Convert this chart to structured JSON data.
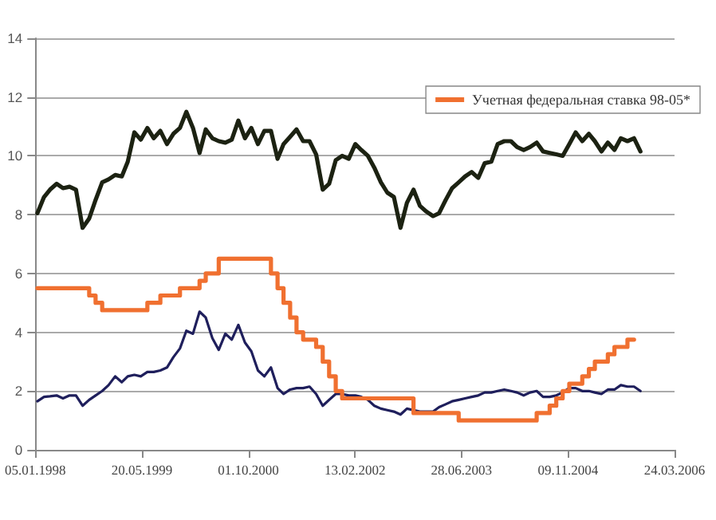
{
  "chart_data": {
    "type": "line",
    "x": [
      "1998-01-15",
      "1998-02-15",
      "1998-03-15",
      "1998-04-15",
      "1998-05-15",
      "1998-06-15",
      "1998-07-15",
      "1998-08-15",
      "1998-09-15",
      "1998-10-15",
      "1998-11-15",
      "1998-12-15",
      "1999-01-15",
      "1999-02-15",
      "1999-03-15",
      "1999-04-15",
      "1999-05-15",
      "1999-06-15",
      "1999-07-15",
      "1999-08-15",
      "1999-09-15",
      "1999-10-15",
      "1999-11-15",
      "1999-12-15",
      "2000-01-15",
      "2000-02-15",
      "2000-03-15",
      "2000-04-15",
      "2000-05-15",
      "2000-06-15",
      "2000-07-15",
      "2000-08-15",
      "2000-09-15",
      "2000-10-15",
      "2000-11-15",
      "2000-12-15",
      "2001-01-15",
      "2001-02-15",
      "2001-03-15",
      "2001-04-15",
      "2001-05-15",
      "2001-06-15",
      "2001-07-15",
      "2001-08-15",
      "2001-09-15",
      "2001-10-15",
      "2001-11-15",
      "2001-12-15",
      "2002-01-15",
      "2002-02-15",
      "2002-03-15",
      "2002-04-15",
      "2002-05-15",
      "2002-06-15",
      "2002-07-15",
      "2002-08-15",
      "2002-09-15",
      "2002-10-15",
      "2002-11-15",
      "2002-12-15",
      "2003-01-15",
      "2003-02-15",
      "2003-03-15",
      "2003-04-15",
      "2003-05-15",
      "2003-06-15",
      "2003-07-15",
      "2003-08-15",
      "2003-09-15",
      "2003-10-15",
      "2003-11-15",
      "2003-12-15",
      "2004-01-15",
      "2004-02-15",
      "2004-03-15",
      "2004-04-15",
      "2004-05-15",
      "2004-06-15",
      "2004-07-15",
      "2004-08-15",
      "2004-09-15",
      "2004-10-15",
      "2004-11-15",
      "2004-12-15",
      "2005-01-15",
      "2005-02-15",
      "2005-03-15",
      "2005-04-15",
      "2005-05-15",
      "2005-06-15",
      "2005-07-15",
      "2005-08-15",
      "2005-09-15",
      "2005-10-15"
    ],
    "series": [
      {
        "color": "#1f1f5c",
        "values": [
          1.65,
          1.8,
          1.82,
          1.85,
          1.75,
          1.85,
          1.85,
          1.5,
          1.7,
          1.85,
          2.0,
          2.2,
          2.5,
          2.3,
          2.5,
          2.55,
          2.5,
          2.65,
          2.65,
          2.7,
          2.8,
          3.15,
          3.45,
          4.05,
          3.95,
          4.7,
          4.5,
          3.8,
          3.4,
          3.95,
          3.75,
          4.25,
          3.65,
          3.35,
          2.7,
          2.5,
          2.8,
          2.1,
          1.9,
          2.05,
          2.1,
          2.1,
          2.15,
          1.9,
          1.5,
          1.7,
          1.9,
          1.9,
          1.85,
          1.85,
          1.8,
          1.7,
          1.5,
          1.4,
          1.35,
          1.3,
          1.2,
          1.4,
          1.35,
          1.3,
          1.3,
          1.3,
          1.45,
          1.55,
          1.65,
          1.7,
          1.75,
          1.8,
          1.85,
          1.95,
          1.95,
          2.0,
          2.05,
          2.0,
          1.95,
          1.85,
          1.95,
          2.0,
          1.8,
          1.8,
          1.85,
          1.95,
          2.1,
          2.1,
          2.0,
          2.0,
          1.95,
          1.9,
          2.05,
          2.05,
          2.2,
          2.15,
          2.15,
          2.0
        ]
      },
      {
        "color": "#1c2212",
        "values": [
          8.05,
          8.6,
          8.85,
          9.05,
          8.9,
          8.95,
          8.85,
          7.55,
          7.87,
          8.5,
          9.1,
          9.2,
          9.35,
          9.3,
          9.8,
          10.8,
          10.55,
          10.95,
          10.6,
          10.85,
          10.4,
          10.75,
          10.95,
          11.5,
          10.95,
          10.1,
          10.9,
          10.6,
          10.5,
          10.45,
          10.55,
          11.2,
          10.6,
          10.95,
          10.4,
          10.85,
          10.85,
          9.9,
          10.4,
          10.65,
          10.9,
          10.5,
          10.5,
          10.05,
          8.85,
          9.05,
          9.85,
          10.0,
          9.9,
          10.4,
          10.2,
          10.0,
          9.6,
          9.1,
          8.75,
          8.6,
          7.55,
          8.4,
          8.85,
          8.3,
          8.1,
          7.95,
          8.05,
          8.5,
          8.9,
          9.1,
          9.3,
          9.45,
          9.25,
          9.75,
          9.8,
          10.4,
          10.5,
          10.5,
          10.3,
          10.2,
          10.3,
          10.45,
          10.15,
          10.1,
          10.05,
          10.0,
          10.4,
          10.8,
          10.5,
          10.75,
          10.5,
          10.15,
          10.45,
          10.2,
          10.6,
          10.5,
          10.6,
          10.15
        ]
      },
      {
        "name": "Учетная федеральная ставка 98-05*",
        "type": "step",
        "color": "#f07030",
        "x": [
          "1998-01-15",
          "1998-09-15",
          "1998-10-15",
          "1998-11-15",
          "1999-06-15",
          "1999-08-15",
          "1999-11-15",
          "2000-02-15",
          "2000-03-15",
          "2000-05-15",
          "2001-01-15",
          "2001-02-15",
          "2001-03-15",
          "2001-04-15",
          "2001-05-15",
          "2001-06-15",
          "2001-08-15",
          "2001-09-15",
          "2001-10-15",
          "2001-11-15",
          "2001-12-15",
          "2002-11-15",
          "2003-06-15",
          "2004-06-15",
          "2004-08-15",
          "2004-09-15",
          "2004-10-15",
          "2004-11-15",
          "2005-01-15",
          "2005-02-15",
          "2005-03-15",
          "2005-05-15",
          "2005-06-15",
          "2005-08-15",
          "2005-09-15"
        ],
        "values": [
          5.5,
          5.25,
          5.0,
          4.75,
          5.0,
          5.25,
          5.5,
          5.75,
          6.0,
          6.5,
          6.0,
          5.5,
          5.0,
          4.5,
          4.0,
          3.75,
          3.5,
          3.0,
          2.5,
          2.0,
          1.75,
          1.25,
          1.0,
          1.25,
          1.5,
          1.75,
          2.0,
          2.25,
          2.5,
          2.75,
          3.0,
          3.25,
          3.5,
          3.75,
          3.75
        ]
      }
    ],
    "xlim": [
      "1998-01-05",
      "2006-03-24"
    ],
    "xticks": [
      {
        "value": "1998-01-05",
        "label": "05.01.1998"
      },
      {
        "value": "1999-05-20",
        "label": "20.05.1999"
      },
      {
        "value": "2000-10-01",
        "label": "01.10.2000"
      },
      {
        "value": "2002-02-13",
        "label": "13.02.2002"
      },
      {
        "value": "2003-06-28",
        "label": "28.06.2003"
      },
      {
        "value": "2004-11-09",
        "label": "09.11.2004"
      },
      {
        "value": "2006-03-24",
        "label": "24.03.2006"
      }
    ],
    "ylim": [
      0,
      14
    ],
    "yticks": [
      0,
      2,
      4,
      6,
      8,
      10,
      12,
      14
    ],
    "grid": "y",
    "legend": "top right",
    "marker": "none",
    "line_style": "solid"
  }
}
